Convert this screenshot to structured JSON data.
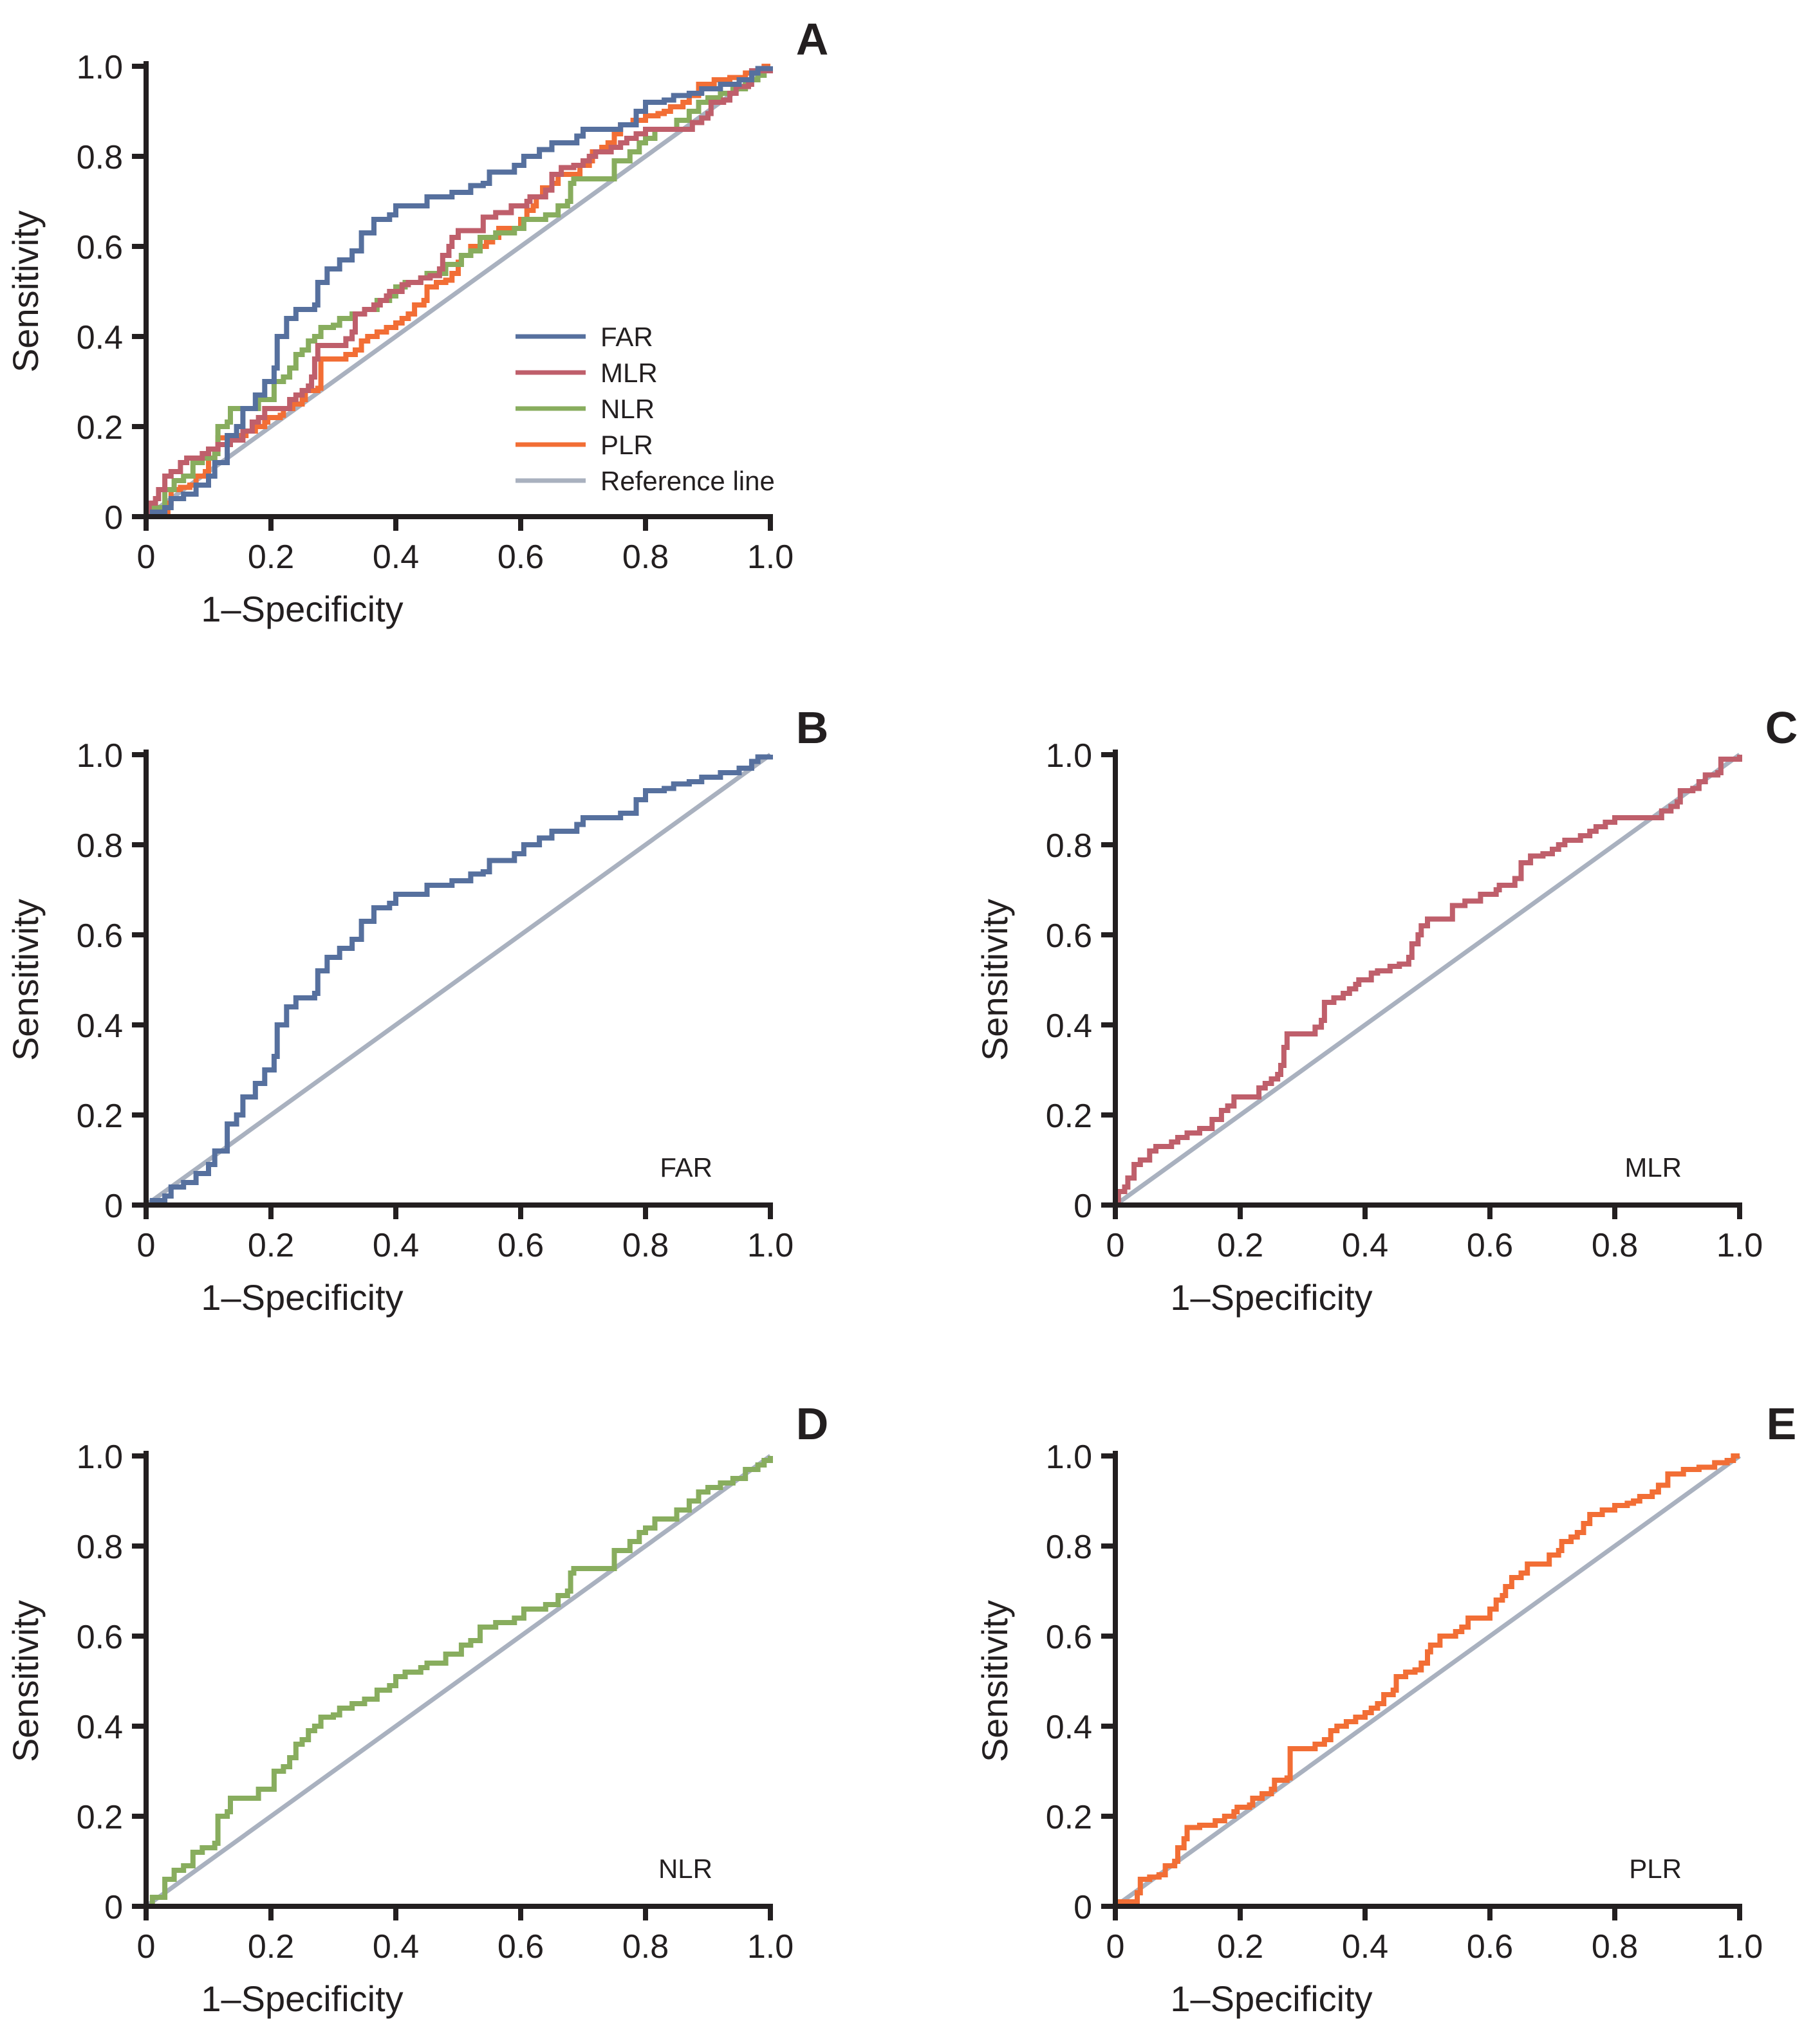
{
  "chart_data": {
    "type": "line",
    "figure_description": "ROC curves for FAR, MLR, NLR and PLR",
    "colors": {
      "FAR": "#56709e",
      "MLR": "#bf5f6b",
      "NLR": "#88ad5e",
      "PLR": "#f26e35",
      "Reference line": "#a9b1bf",
      "axis": "#231f20"
    },
    "series": [
      {
        "name": "FAR",
        "x": [
          0,
          0.01,
          0.03,
          0.04,
          0.06,
          0.08,
          0.1,
          0.11,
          0.125,
          0.13,
          0.145,
          0.155,
          0.175,
          0.19,
          0.205,
          0.21,
          0.225,
          0.24,
          0.27,
          0.275,
          0.29,
          0.31,
          0.33,
          0.345,
          0.365,
          0.39,
          0.4,
          0.44,
          0.45,
          0.49,
          0.52,
          0.54,
          0.55,
          0.59,
          0.605,
          0.63,
          0.65,
          0.69,
          0.7,
          0.76,
          0.785,
          0.8,
          0.83,
          0.845,
          0.87,
          0.89,
          0.92,
          0.95,
          0.97,
          0.98,
          1.0
        ],
        "y": [
          0,
          0.01,
          0.02,
          0.04,
          0.05,
          0.07,
          0.09,
          0.12,
          0.12,
          0.18,
          0.2,
          0.24,
          0.27,
          0.3,
          0.33,
          0.4,
          0.44,
          0.46,
          0.47,
          0.52,
          0.55,
          0.57,
          0.59,
          0.63,
          0.66,
          0.67,
          0.69,
          0.69,
          0.71,
          0.72,
          0.735,
          0.74,
          0.765,
          0.78,
          0.8,
          0.815,
          0.83,
          0.845,
          0.86,
          0.87,
          0.9,
          0.92,
          0.925,
          0.935,
          0.94,
          0.95,
          0.96,
          0.97,
          0.985,
          0.995,
          1.0
        ]
      },
      {
        "name": "MLR",
        "x": [
          0,
          0.005,
          0.015,
          0.02,
          0.03,
          0.04,
          0.055,
          0.065,
          0.09,
          0.1,
          0.115,
          0.135,
          0.155,
          0.17,
          0.18,
          0.19,
          0.22,
          0.23,
          0.24,
          0.25,
          0.26,
          0.265,
          0.27,
          0.275,
          0.315,
          0.32,
          0.33,
          0.335,
          0.35,
          0.365,
          0.375,
          0.385,
          0.39,
          0.41,
          0.42,
          0.44,
          0.455,
          0.47,
          0.475,
          0.485,
          0.49,
          0.5,
          0.535,
          0.54,
          0.56,
          0.585,
          0.61,
          0.615,
          0.64,
          0.65,
          0.665,
          0.685,
          0.7,
          0.71,
          0.72,
          0.745,
          0.76,
          0.77,
          0.785,
          0.8,
          0.87,
          0.875,
          0.89,
          0.9,
          0.905,
          0.925,
          0.935,
          0.945,
          0.965,
          0.97,
          0.985,
          1.0
        ],
        "y": [
          0,
          0.03,
          0.04,
          0.06,
          0.09,
          0.1,
          0.12,
          0.13,
          0.14,
          0.15,
          0.16,
          0.17,
          0.19,
          0.21,
          0.22,
          0.24,
          0.24,
          0.26,
          0.27,
          0.28,
          0.29,
          0.31,
          0.35,
          0.38,
          0.38,
          0.395,
          0.41,
          0.45,
          0.46,
          0.47,
          0.48,
          0.49,
          0.5,
          0.515,
          0.52,
          0.53,
          0.535,
          0.55,
          0.58,
          0.6,
          0.62,
          0.635,
          0.635,
          0.665,
          0.675,
          0.69,
          0.7,
          0.71,
          0.725,
          0.76,
          0.775,
          0.78,
          0.79,
          0.8,
          0.81,
          0.82,
          0.83,
          0.84,
          0.85,
          0.86,
          0.86,
          0.875,
          0.885,
          0.895,
          0.92,
          0.925,
          0.94,
          0.955,
          0.96,
          0.99,
          0.99,
          1.0
        ]
      },
      {
        "name": "NLR",
        "x": [
          0,
          0.01,
          0.02,
          0.03,
          0.045,
          0.045,
          0.06,
          0.07,
          0.075,
          0.09,
          0.1,
          0.11,
          0.115,
          0.13,
          0.135,
          0.165,
          0.18,
          0.2,
          0.205,
          0.22,
          0.23,
          0.24,
          0.25,
          0.26,
          0.27,
          0.28,
          0.3,
          0.31,
          0.33,
          0.35,
          0.37,
          0.39,
          0.4,
          0.415,
          0.44,
          0.45,
          0.48,
          0.505,
          0.52,
          0.535,
          0.56,
          0.59,
          0.605,
          0.64,
          0.66,
          0.675,
          0.68,
          0.685,
          0.74,
          0.75,
          0.775,
          0.79,
          0.8,
          0.815,
          0.84,
          0.85,
          0.87,
          0.885,
          0.9,
          0.92,
          0.94,
          0.96,
          0.98,
          0.99,
          1.0
        ],
        "y": [
          0,
          0.02,
          0.02,
          0.06,
          0.06,
          0.08,
          0.09,
          0.09,
          0.12,
          0.13,
          0.13,
          0.14,
          0.2,
          0.21,
          0.24,
          0.24,
          0.26,
          0.26,
          0.3,
          0.31,
          0.33,
          0.36,
          0.37,
          0.39,
          0.4,
          0.42,
          0.425,
          0.44,
          0.45,
          0.46,
          0.48,
          0.49,
          0.51,
          0.52,
          0.53,
          0.54,
          0.56,
          0.58,
          0.59,
          0.62,
          0.63,
          0.64,
          0.66,
          0.67,
          0.69,
          0.7,
          0.74,
          0.75,
          0.75,
          0.79,
          0.81,
          0.83,
          0.84,
          0.86,
          0.86,
          0.88,
          0.9,
          0.92,
          0.93,
          0.94,
          0.95,
          0.97,
          0.98,
          0.99,
          1.0
        ]
      },
      {
        "name": "PLR",
        "x": [
          0,
          0.005,
          0.03,
          0.035,
          0.04,
          0.055,
          0.07,
          0.08,
          0.095,
          0.1,
          0.11,
          0.115,
          0.135,
          0.15,
          0.16,
          0.175,
          0.19,
          0.195,
          0.215,
          0.22,
          0.235,
          0.25,
          0.255,
          0.275,
          0.28,
          0.31,
          0.32,
          0.335,
          0.345,
          0.355,
          0.37,
          0.385,
          0.4,
          0.41,
          0.42,
          0.43,
          0.445,
          0.45,
          0.465,
          0.48,
          0.49,
          0.5,
          0.505,
          0.52,
          0.545,
          0.555,
          0.565,
          0.595,
          0.6,
          0.61,
          0.62,
          0.625,
          0.635,
          0.65,
          0.66,
          0.685,
          0.695,
          0.71,
          0.715,
          0.73,
          0.74,
          0.75,
          0.76,
          0.78,
          0.8,
          0.82,
          0.83,
          0.84,
          0.86,
          0.87,
          0.885,
          0.91,
          0.935,
          0.96,
          0.98,
          0.99,
          1.0
        ],
        "y": [
          0,
          0.01,
          0.01,
          0.03,
          0.06,
          0.065,
          0.07,
          0.09,
          0.1,
          0.13,
          0.15,
          0.175,
          0.18,
          0.18,
          0.19,
          0.2,
          0.21,
          0.22,
          0.225,
          0.24,
          0.25,
          0.26,
          0.28,
          0.285,
          0.35,
          0.35,
          0.36,
          0.37,
          0.39,
          0.4,
          0.41,
          0.42,
          0.43,
          0.44,
          0.45,
          0.47,
          0.48,
          0.51,
          0.52,
          0.525,
          0.54,
          0.565,
          0.58,
          0.6,
          0.61,
          0.62,
          0.64,
          0.64,
          0.66,
          0.68,
          0.69,
          0.71,
          0.73,
          0.74,
          0.76,
          0.76,
          0.78,
          0.79,
          0.81,
          0.82,
          0.83,
          0.85,
          0.87,
          0.88,
          0.89,
          0.895,
          0.9,
          0.91,
          0.92,
          0.935,
          0.96,
          0.97,
          0.975,
          0.985,
          0.99,
          1.0,
          1.0
        ]
      },
      {
        "name": "Reference line",
        "x": [
          0,
          1
        ],
        "y": [
          0,
          1
        ]
      }
    ],
    "panels": [
      {
        "id": "A",
        "letter": "A",
        "series": [
          "FAR",
          "MLR",
          "NLR",
          "PLR"
        ],
        "legend": [
          "FAR",
          "MLR",
          "NLR",
          "PLR",
          "Reference line"
        ],
        "legend_position": "bottom-right",
        "inset_label": ""
      },
      {
        "id": "B",
        "letter": "B",
        "series": [
          "FAR"
        ],
        "legend": [],
        "inset_label": "FAR"
      },
      {
        "id": "C",
        "letter": "C",
        "series": [
          "MLR"
        ],
        "legend": [],
        "inset_label": "MLR"
      },
      {
        "id": "D",
        "letter": "D",
        "series": [
          "NLR"
        ],
        "legend": [],
        "inset_label": "NLR"
      },
      {
        "id": "E",
        "letter": "E",
        "series": [
          "PLR"
        ],
        "legend": [],
        "inset_label": "PLR"
      }
    ],
    "xlabel": "1–Specificity",
    "ylabel": "Sensitivity",
    "xlim": [
      0,
      1
    ],
    "ylim": [
      0,
      1
    ],
    "xticks": [
      0,
      0.2,
      0.4,
      0.6,
      0.8,
      1.0
    ],
    "xtick_labels": [
      "0",
      "0.2",
      "0.4",
      "0.6",
      "0.8",
      "1.0"
    ],
    "yticks": [
      0,
      0.2,
      0.4,
      0.6,
      0.8,
      1.0
    ],
    "ytick_labels": [
      "0",
      "0.2",
      "0.4",
      "0.6",
      "0.8",
      "1.0"
    ],
    "grid": false
  }
}
